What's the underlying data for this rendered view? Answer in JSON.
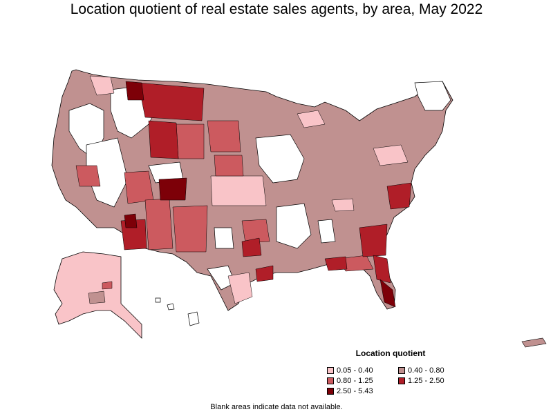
{
  "title": "Location quotient of real estate sales agents, by area, May 2022",
  "legend": {
    "title": "Location quotient",
    "items": [
      {
        "label": "0.05 - 0.40",
        "color": "#f9c4c8"
      },
      {
        "label": "0.40 - 0.80",
        "color": "#c09190"
      },
      {
        "label": "0.80 - 1.25",
        "color": "#cc5a5f"
      },
      {
        "label": "1.25 - 2.50",
        "color": "#b01e28"
      },
      {
        "label": "2.50 - 5.43",
        "color": "#7d0008"
      }
    ]
  },
  "footnote": "Blank areas indicate data not available."
}
